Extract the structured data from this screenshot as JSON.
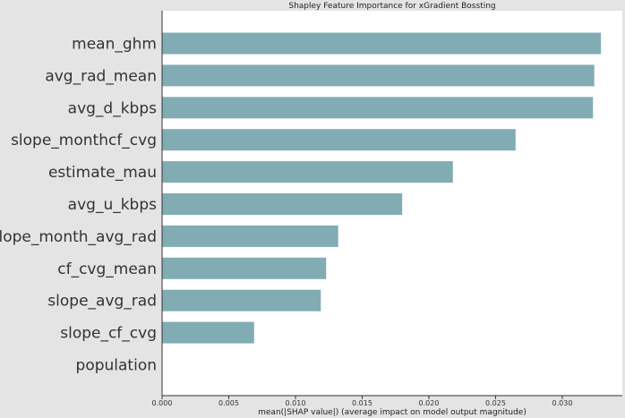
{
  "chart_data": {
    "type": "bar",
    "orientation": "horizontal",
    "title": "Shapley Feature Importance for xGradient Bossting",
    "xlabel": "mean(|SHAP value|) (average impact on model output magnitude)",
    "ylabel": "",
    "categories": [
      "mean_ghm",
      "avg_rad_mean",
      "avg_d_kbps",
      "slope_monthcf_cvg",
      "estimate_mau",
      "avg_u_kbps",
      "slope_month_avg_rad",
      "cf_cvg_mean",
      "slope_avg_rad",
      "slope_cf_cvg",
      "population"
    ],
    "values": [
      0.0329,
      0.0324,
      0.0323,
      0.0265,
      0.0218,
      0.018,
      0.0132,
      0.0123,
      0.0119,
      0.0069,
      0.0
    ],
    "xlim": [
      0,
      0.0345
    ],
    "xticks": [
      "0.000",
      "0.005",
      "0.010",
      "0.015",
      "0.020",
      "0.025",
      "0.030"
    ],
    "grid": false,
    "legend": "none",
    "bar_color": "#82acb4"
  }
}
